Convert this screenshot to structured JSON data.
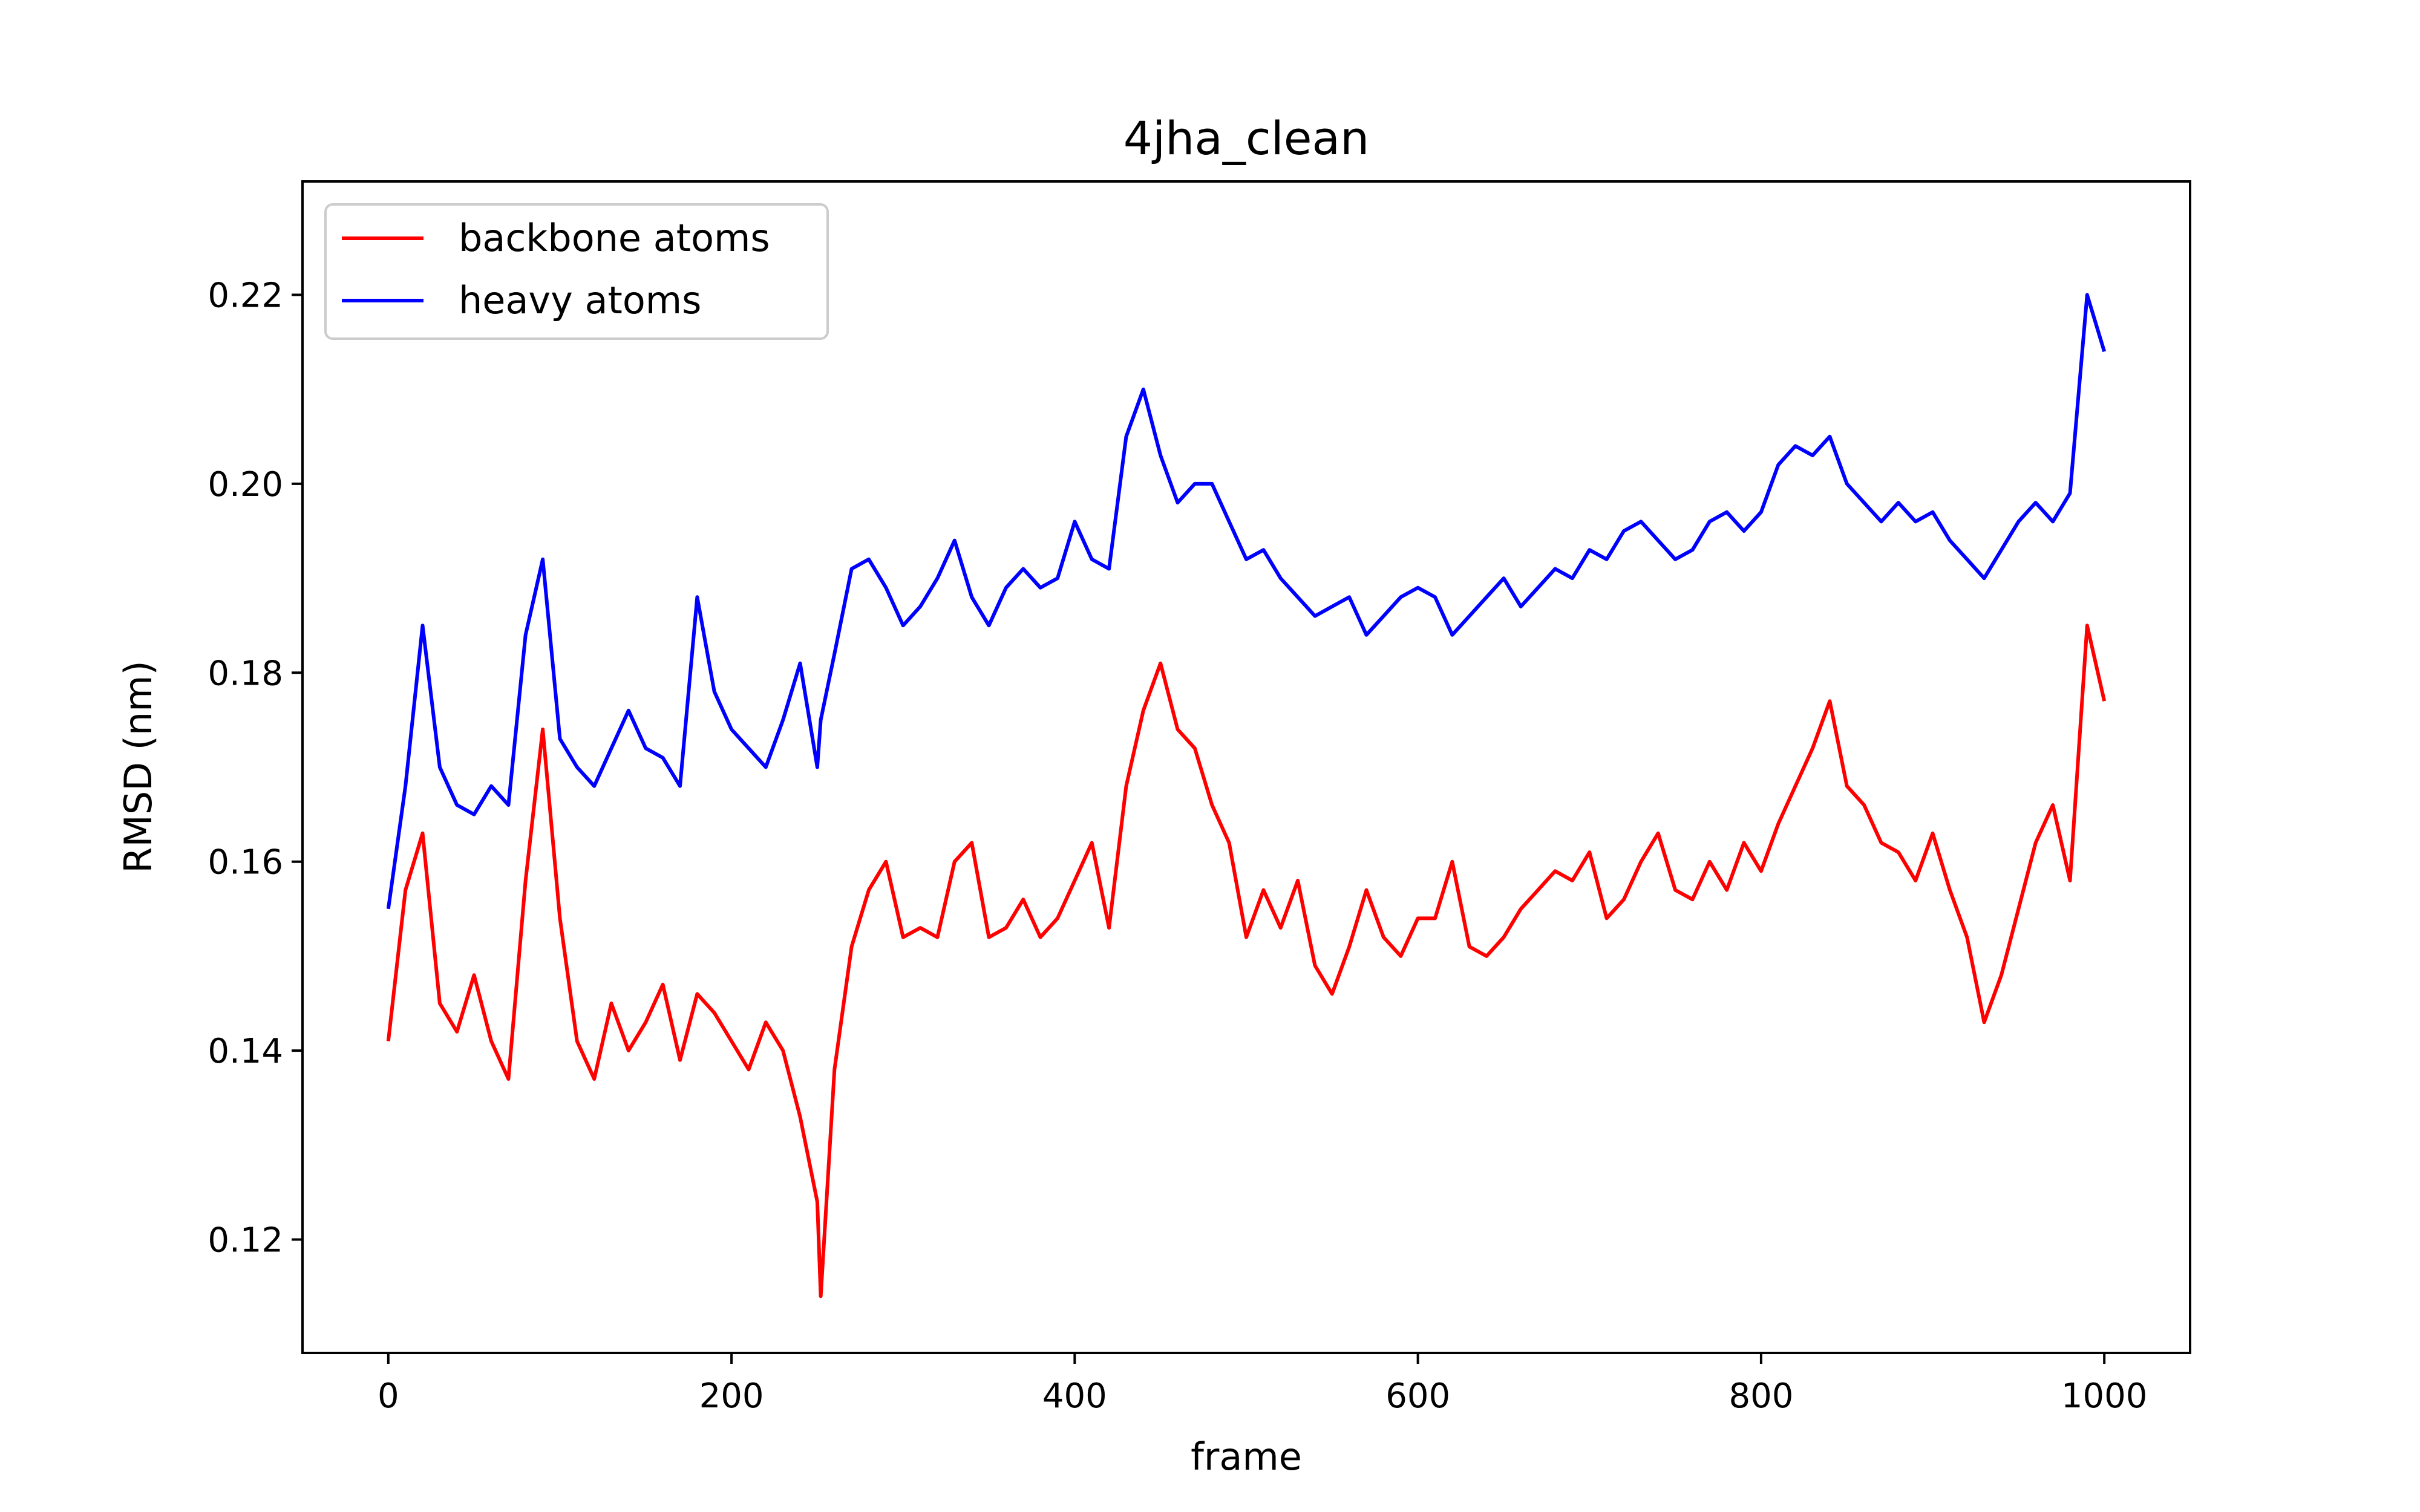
{
  "chart_data": {
    "type": "line",
    "title": "4jha_clean",
    "xlabel": "frame",
    "ylabel": "RMSD (nm)",
    "xlim": [
      -50,
      1050
    ],
    "ylim": [
      0.108,
      0.232
    ],
    "x_ticks": [
      0,
      200,
      400,
      600,
      800,
      1000
    ],
    "x_tick_labels": [
      "0",
      "200",
      "400",
      "600",
      "800",
      "1000"
    ],
    "y_ticks": [
      0.12,
      0.14,
      0.16,
      0.18,
      0.2,
      0.22
    ],
    "y_tick_labels": [
      "0.12",
      "0.14",
      "0.16",
      "0.18",
      "0.20",
      "0.22"
    ],
    "grid": false,
    "legend_position": "top-left",
    "series": [
      {
        "name": "backbone atoms",
        "color": "#ff0000",
        "x": [
          0,
          10,
          20,
          30,
          40,
          50,
          60,
          70,
          80,
          90,
          100,
          110,
          120,
          130,
          140,
          150,
          160,
          170,
          180,
          190,
          200,
          210,
          220,
          230,
          240,
          250,
          252,
          260,
          270,
          280,
          290,
          300,
          310,
          320,
          330,
          340,
          350,
          360,
          370,
          380,
          390,
          400,
          410,
          420,
          430,
          440,
          450,
          460,
          470,
          480,
          490,
          500,
          510,
          520,
          530,
          540,
          550,
          560,
          570,
          580,
          590,
          600,
          610,
          620,
          630,
          640,
          650,
          660,
          670,
          680,
          690,
          700,
          710,
          720,
          730,
          740,
          750,
          760,
          770,
          780,
          790,
          800,
          810,
          820,
          830,
          840,
          850,
          860,
          870,
          880,
          890,
          900,
          910,
          920,
          930,
          940,
          950,
          960,
          970,
          980,
          990,
          1000
        ],
        "values": [
          0.141,
          0.157,
          0.163,
          0.145,
          0.142,
          0.148,
          0.141,
          0.137,
          0.158,
          0.174,
          0.154,
          0.141,
          0.137,
          0.145,
          0.14,
          0.143,
          0.147,
          0.139,
          0.146,
          0.144,
          0.141,
          0.138,
          0.143,
          0.14,
          0.133,
          0.124,
          0.114,
          0.138,
          0.151,
          0.157,
          0.16,
          0.152,
          0.153,
          0.152,
          0.16,
          0.162,
          0.152,
          0.153,
          0.156,
          0.152,
          0.154,
          0.158,
          0.162,
          0.153,
          0.168,
          0.176,
          0.181,
          0.174,
          0.172,
          0.166,
          0.162,
          0.152,
          0.157,
          0.153,
          0.158,
          0.149,
          0.146,
          0.151,
          0.157,
          0.152,
          0.15,
          0.154,
          0.154,
          0.16,
          0.151,
          0.15,
          0.152,
          0.155,
          0.157,
          0.159,
          0.158,
          0.161,
          0.154,
          0.156,
          0.16,
          0.163,
          0.157,
          0.156,
          0.16,
          0.157,
          0.162,
          0.159,
          0.164,
          0.168,
          0.172,
          0.177,
          0.168,
          0.166,
          0.162,
          0.161,
          0.158,
          0.163,
          0.157,
          0.152,
          0.143,
          0.148,
          0.155,
          0.162,
          0.166,
          0.158,
          0.185,
          0.177
        ]
      },
      {
        "name": "heavy atoms",
        "color": "#0000ff",
        "x": [
          0,
          10,
          20,
          30,
          40,
          50,
          60,
          70,
          80,
          90,
          100,
          110,
          120,
          130,
          140,
          150,
          160,
          170,
          180,
          190,
          200,
          210,
          220,
          230,
          240,
          250,
          252,
          260,
          270,
          280,
          290,
          300,
          310,
          320,
          330,
          340,
          350,
          360,
          370,
          380,
          390,
          400,
          410,
          420,
          430,
          440,
          450,
          460,
          470,
          480,
          490,
          500,
          510,
          520,
          530,
          540,
          550,
          560,
          570,
          580,
          590,
          600,
          610,
          620,
          630,
          640,
          650,
          660,
          670,
          680,
          690,
          700,
          710,
          720,
          730,
          740,
          750,
          760,
          770,
          780,
          790,
          800,
          810,
          820,
          830,
          840,
          850,
          860,
          870,
          880,
          890,
          900,
          910,
          920,
          930,
          940,
          950,
          960,
          970,
          980,
          990,
          1000
        ],
        "values": [
          0.155,
          0.168,
          0.185,
          0.17,
          0.166,
          0.165,
          0.168,
          0.166,
          0.184,
          0.192,
          0.173,
          0.17,
          0.168,
          0.172,
          0.176,
          0.172,
          0.171,
          0.168,
          0.188,
          0.178,
          0.174,
          0.172,
          0.17,
          0.175,
          0.181,
          0.17,
          0.175,
          0.182,
          0.191,
          0.192,
          0.189,
          0.185,
          0.187,
          0.19,
          0.194,
          0.188,
          0.185,
          0.189,
          0.191,
          0.189,
          0.19,
          0.196,
          0.192,
          0.191,
          0.205,
          0.21,
          0.203,
          0.198,
          0.2,
          0.2,
          0.196,
          0.192,
          0.193,
          0.19,
          0.188,
          0.186,
          0.187,
          0.188,
          0.184,
          0.186,
          0.188,
          0.189,
          0.188,
          0.184,
          0.186,
          0.188,
          0.19,
          0.187,
          0.189,
          0.191,
          0.19,
          0.193,
          0.192,
          0.195,
          0.196,
          0.194,
          0.192,
          0.193,
          0.196,
          0.197,
          0.195,
          0.197,
          0.202,
          0.204,
          0.203,
          0.205,
          0.2,
          0.198,
          0.196,
          0.198,
          0.196,
          0.197,
          0.194,
          0.192,
          0.19,
          0.193,
          0.196,
          0.198,
          0.196,
          0.199,
          0.22,
          0.214
        ]
      }
    ]
  }
}
